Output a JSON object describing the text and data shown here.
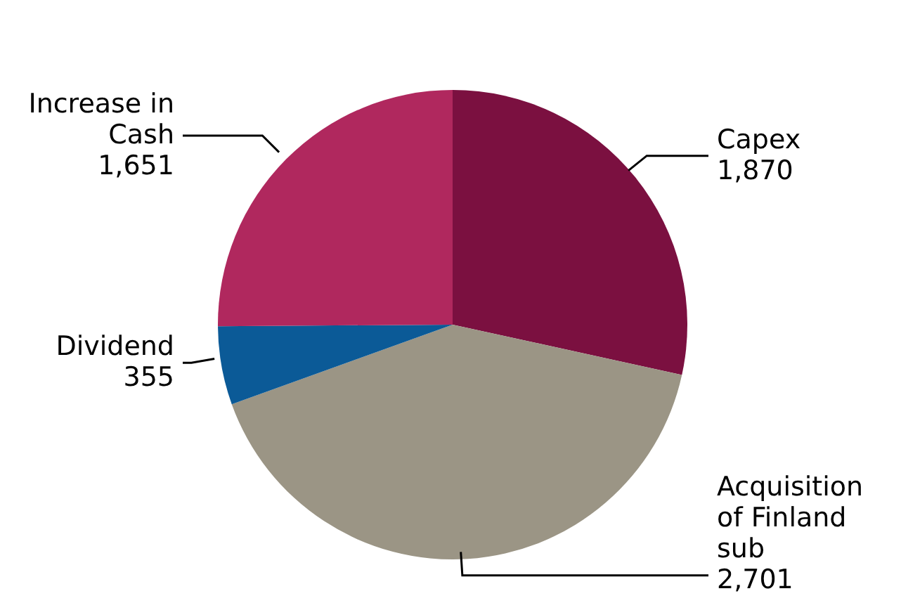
{
  "chart_data": {
    "type": "pie",
    "categories": [
      "Capex",
      "Acquisition of Finland sub",
      "Dividend",
      "Increase in Cash"
    ],
    "values": [
      1870,
      2701,
      355,
      1651
    ],
    "colors": [
      "#7b1040",
      "#9b9585",
      "#0b5a97",
      "#b0285e"
    ],
    "value_labels": [
      "1,870",
      "2,701",
      "355",
      "1,651"
    ],
    "legend": false
  }
}
